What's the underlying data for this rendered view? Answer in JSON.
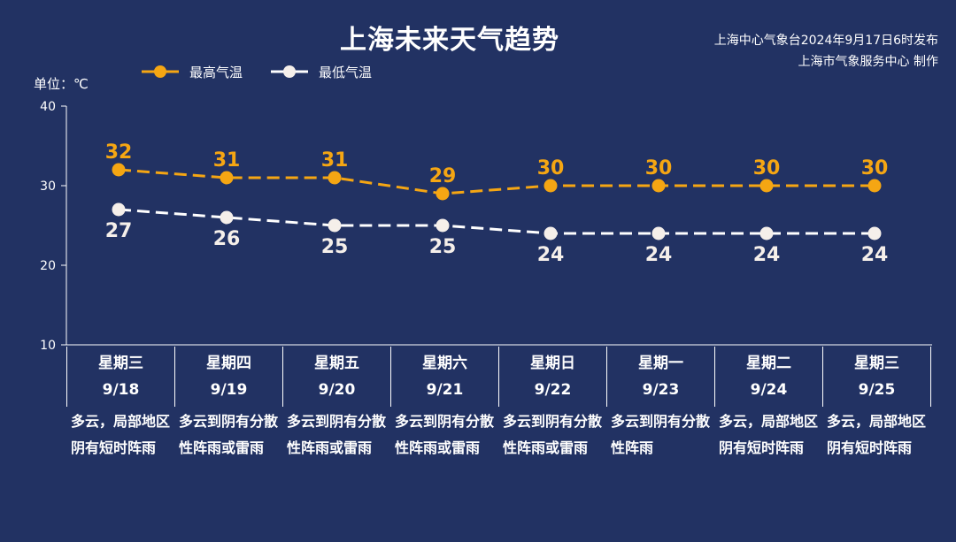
{
  "header": {
    "title": "上海未来天气趋势",
    "source_line1": "上海中心气象台2024年9月17日6时发布",
    "source_line2": "上海市气象服务中心 制作"
  },
  "colors": {
    "background": "#223263",
    "high": "#F5A613",
    "low": "#FFFFFF",
    "low_marker": "#F5EFEA"
  },
  "chart_data": {
    "type": "line",
    "title": "上海未来天气趋势",
    "y_unit_label": "单位：℃",
    "ylim": [
      10,
      40
    ],
    "yticks": [
      10,
      20,
      30,
      40
    ],
    "grid": false,
    "legend_position": "top-left",
    "categories": [
      "9/18",
      "9/19",
      "9/20",
      "9/21",
      "9/22",
      "9/23",
      "9/24",
      "9/25"
    ],
    "series": [
      {
        "name": "最高气温",
        "values": [
          32,
          31,
          31,
          29,
          30,
          30,
          30,
          30
        ],
        "color": "#F5A613",
        "line_style": "dashed"
      },
      {
        "name": "最低气温",
        "values": [
          27,
          26,
          25,
          25,
          24,
          24,
          24,
          24
        ],
        "color": "#FFFFFF",
        "line_style": "dashed"
      }
    ]
  },
  "days": [
    {
      "weekday": "星期三",
      "date": "9/18",
      "weather": "多云，局部地区阴有短时阵雨"
    },
    {
      "weekday": "星期四",
      "date": "9/19",
      "weather": "多云到阴有分散性阵雨或雷雨"
    },
    {
      "weekday": "星期五",
      "date": "9/20",
      "weather": "多云到阴有分散性阵雨或雷雨"
    },
    {
      "weekday": "星期六",
      "date": "9/21",
      "weather": "多云到阴有分散性阵雨或雷雨"
    },
    {
      "weekday": "星期日",
      "date": "9/22",
      "weather": "多云到阴有分散性阵雨或雷雨"
    },
    {
      "weekday": "星期一",
      "date": "9/23",
      "weather": "多云到阴有分散性阵雨"
    },
    {
      "weekday": "星期二",
      "date": "9/24",
      "weather": "多云，局部地区阴有短时阵雨"
    },
    {
      "weekday": "星期三",
      "date": "9/25",
      "weather": "多云，局部地区阴有短时阵雨"
    }
  ]
}
